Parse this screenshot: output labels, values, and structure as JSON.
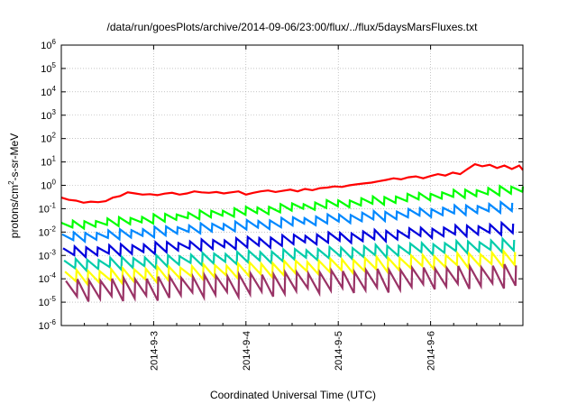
{
  "chart_data": {
    "type": "line",
    "title": "/data/run/goesPlots/archive/2014-09-06/23:00/flux/../flux/5daysMarsFluxes.txt",
    "xlabel": "Coordinated Universal Time (UTC)",
    "ylabel": {
      "base": "protons/cm",
      "sup": "2",
      "rest": "-s-sr-MeV"
    },
    "yscale": "log",
    "ylim": [
      1e-06,
      1000000.0
    ],
    "yticks": [
      {
        "exp": -6,
        "base": "10",
        "sup": "-6"
      },
      {
        "exp": -5,
        "base": "10",
        "sup": "-5"
      },
      {
        "exp": -4,
        "base": "10",
        "sup": "-4"
      },
      {
        "exp": -3,
        "base": "10",
        "sup": "-3"
      },
      {
        "exp": -2,
        "base": "10",
        "sup": "-2"
      },
      {
        "exp": -1,
        "base": "10",
        "sup": "-1"
      },
      {
        "exp": 0,
        "base": "10",
        "sup": "0"
      },
      {
        "exp": 1,
        "base": "10",
        "sup": "1"
      },
      {
        "exp": 2,
        "base": "10",
        "sup": "2"
      },
      {
        "exp": 3,
        "base": "10",
        "sup": "3"
      },
      {
        "exp": 4,
        "base": "10",
        "sup": "4"
      },
      {
        "exp": 5,
        "base": "10",
        "sup": "5"
      },
      {
        "exp": 6,
        "base": "10",
        "sup": "6"
      }
    ],
    "xlim": [
      "2014-9-2 00:00",
      "2014-9-7 00:00"
    ],
    "xticks": [
      {
        "day": 1,
        "label": "2014-9-3"
      },
      {
        "day": 2,
        "label": "2014-9-4"
      },
      {
        "day": 3,
        "label": "2014-9-5"
      },
      {
        "day": 4,
        "label": "2014-9-6"
      }
    ],
    "grid": true,
    "legend": "none",
    "series": [
      {
        "color": "#ff0000",
        "sawtooth": false,
        "points": [
          [
            0.0,
            0.3
          ],
          [
            0.08,
            0.24
          ],
          [
            0.16,
            0.22
          ],
          [
            0.24,
            0.18
          ],
          [
            0.32,
            0.2
          ],
          [
            0.4,
            0.19
          ],
          [
            0.48,
            0.21
          ],
          [
            0.56,
            0.3
          ],
          [
            0.64,
            0.35
          ],
          [
            0.72,
            0.5
          ],
          [
            0.8,
            0.45
          ],
          [
            0.88,
            0.4
          ],
          [
            0.96,
            0.42
          ],
          [
            1.04,
            0.38
          ],
          [
            1.12,
            0.44
          ],
          [
            1.2,
            0.48
          ],
          [
            1.28,
            0.4
          ],
          [
            1.36,
            0.45
          ],
          [
            1.44,
            0.55
          ],
          [
            1.52,
            0.5
          ],
          [
            1.6,
            0.48
          ],
          [
            1.68,
            0.52
          ],
          [
            1.76,
            0.45
          ],
          [
            1.84,
            0.5
          ],
          [
            1.92,
            0.55
          ],
          [
            2.0,
            0.4
          ],
          [
            2.08,
            0.48
          ],
          [
            2.16,
            0.55
          ],
          [
            2.24,
            0.6
          ],
          [
            2.32,
            0.52
          ],
          [
            2.4,
            0.58
          ],
          [
            2.48,
            0.65
          ],
          [
            2.56,
            0.55
          ],
          [
            2.64,
            0.7
          ],
          [
            2.72,
            0.62
          ],
          [
            2.8,
            0.75
          ],
          [
            2.88,
            0.8
          ],
          [
            2.96,
            0.9
          ],
          [
            3.04,
            0.85
          ],
          [
            3.12,
            1.0
          ],
          [
            3.2,
            1.1
          ],
          [
            3.28,
            1.2
          ],
          [
            3.36,
            1.3
          ],
          [
            3.44,
            1.5
          ],
          [
            3.52,
            1.7
          ],
          [
            3.6,
            2.0
          ],
          [
            3.68,
            1.8
          ],
          [
            3.76,
            2.2
          ],
          [
            3.84,
            2.4
          ],
          [
            3.92,
            2.0
          ],
          [
            4.0,
            2.5
          ],
          [
            4.08,
            3.0
          ],
          [
            4.16,
            2.6
          ],
          [
            4.24,
            3.5
          ],
          [
            4.32,
            3.0
          ],
          [
            4.4,
            5.0
          ],
          [
            4.48,
            8.0
          ],
          [
            4.56,
            6.5
          ],
          [
            4.64,
            7.5
          ],
          [
            4.72,
            5.5
          ],
          [
            4.8,
            7.0
          ],
          [
            4.88,
            5.0
          ],
          [
            4.96,
            7.0
          ],
          [
            5.0,
            4.5
          ]
        ]
      },
      {
        "color": "#00ff00",
        "sawtooth": true,
        "start": 0.025,
        "end": 1.0,
        "period": 0.125,
        "depth": 0.3,
        "offset": 0.0
      },
      {
        "color": "#0088ff",
        "sawtooth": true,
        "start": 0.008,
        "end": 0.2,
        "period": 0.125,
        "depth": 0.35,
        "offset": 0.01
      },
      {
        "color": "#0000dd",
        "sawtooth": true,
        "start": 0.002,
        "end": 0.025,
        "period": 0.125,
        "depth": 0.4,
        "offset": 0.02
      },
      {
        "color": "#00ccaa",
        "sawtooth": true,
        "start": 0.0006,
        "end": 0.005,
        "period": 0.125,
        "depth": 0.45,
        "offset": 0.03
      },
      {
        "color": "#ffff00",
        "sawtooth": true,
        "start": 0.0002,
        "end": 0.0015,
        "period": 0.125,
        "depth": 0.55,
        "offset": 0.04
      },
      {
        "color": "#993366",
        "sawtooth": true,
        "start": 8e-05,
        "end": 0.0004,
        "period": 0.125,
        "depth": 0.85,
        "offset": 0.05
      }
    ]
  }
}
